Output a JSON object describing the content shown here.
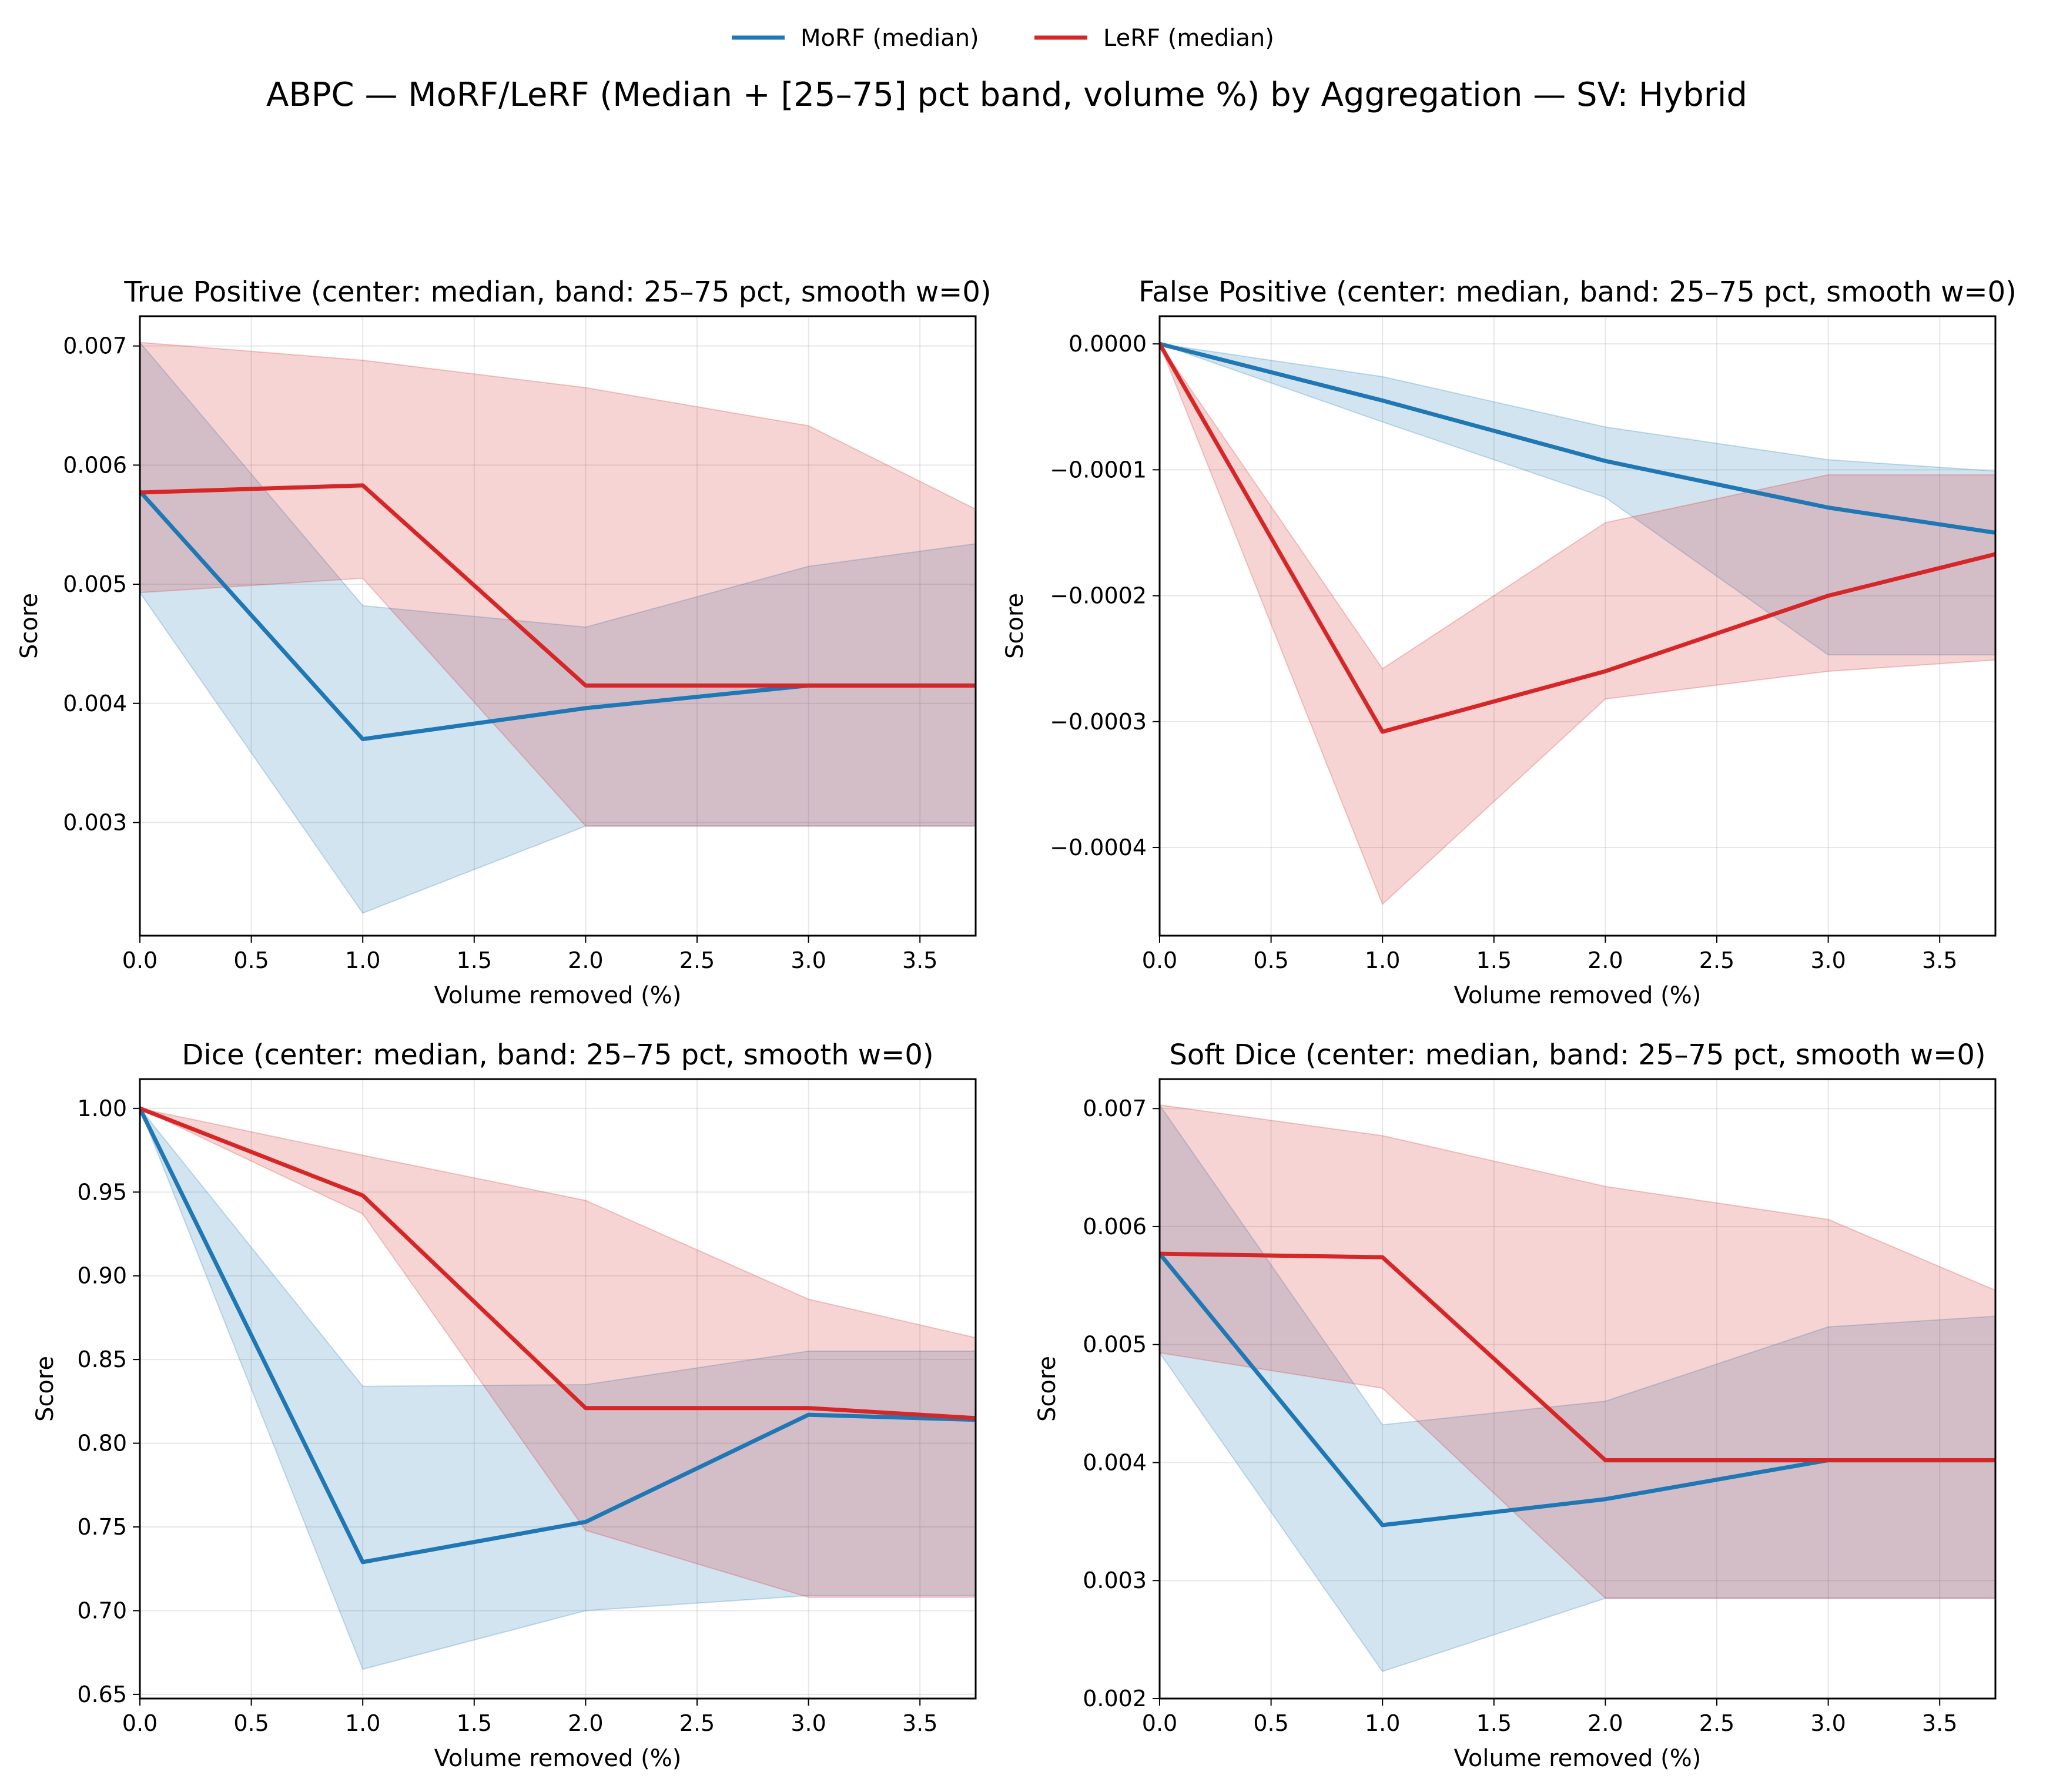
{
  "suptitle": "ABPC — MoRF/LeRF (Median + [25–75] pct band, volume %) by Aggregation — SV: Hybrid",
  "legend": [
    {
      "label": "MoRF (median)",
      "color": "#1f77b4"
    },
    {
      "label": "LeRF (median)",
      "color": "#d62728"
    }
  ],
  "colors": {
    "morf": "#1f77b4",
    "lerf": "#d62728",
    "grid": "#b0b0b0"
  },
  "chart_data": [
    {
      "type": "line",
      "title": "True Positive (center: median, band: 25–75 pct, smooth w=0)",
      "xlabel": "Volume removed (%)",
      "ylabel": "Score",
      "xlim": [
        0,
        3.75
      ],
      "ylim": [
        0.00205,
        0.00725
      ],
      "xticks": [
        "0.0",
        "0.5",
        "1.0",
        "1.5",
        "2.0",
        "2.5",
        "3.0",
        "3.5"
      ],
      "yticks": [
        "0.003",
        "0.004",
        "0.005",
        "0.006",
        "0.007"
      ],
      "grid": true,
      "x": [
        0,
        1,
        2,
        3,
        3.75
      ],
      "series": [
        {
          "name": "MoRF (median)",
          "values": [
            0.00578,
            0.0037,
            0.00396,
            0.00415,
            0.00415
          ],
          "lower": [
            0.00493,
            0.00224,
            0.00297,
            0.00297,
            0.00297
          ],
          "upper": [
            0.00703,
            0.00482,
            0.00464,
            0.00515,
            0.00534
          ]
        },
        {
          "name": "LeRF (median)",
          "values": [
            0.00577,
            0.00583,
            0.00415,
            0.00415,
            0.00415
          ],
          "lower": [
            0.00493,
            0.00505,
            0.00297,
            0.00297,
            0.00297
          ],
          "upper": [
            0.00703,
            0.00688,
            0.00665,
            0.00633,
            0.00563
          ]
        }
      ]
    },
    {
      "type": "line",
      "title": "False Positive (center: median, band: 25–75 pct, smooth w=0)",
      "xlabel": "Volume removed (%)",
      "ylabel": "Score",
      "xlim": [
        0,
        3.75
      ],
      "ylim": [
        -0.00047,
        2.2e-05
      ],
      "xticks": [
        "0.0",
        "0.5",
        "1.0",
        "1.5",
        "2.0",
        "2.5",
        "3.0",
        "3.5"
      ],
      "yticks": [
        "−0.0004",
        "−0.0003",
        "−0.0002",
        "−0.0001",
        "0.0000"
      ],
      "grid": true,
      "x": [
        0,
        1,
        2,
        3,
        3.75
      ],
      "series": [
        {
          "name": "MoRF (median)",
          "values": [
            0,
            -4.5e-05,
            -9.3e-05,
            -0.00013,
            -0.00015
          ],
          "lower": [
            0,
            -6.2e-05,
            -0.000122,
            -0.000247,
            -0.000247
          ],
          "upper": [
            0,
            -2.6e-05,
            -6.6e-05,
            -9.2e-05,
            -0.000101
          ]
        },
        {
          "name": "LeRF (median)",
          "values": [
            0,
            -0.000308,
            -0.00026,
            -0.0002,
            -0.000167
          ],
          "lower": [
            0,
            -0.000445,
            -0.000282,
            -0.00026,
            -0.000251
          ],
          "upper": [
            0,
            -0.000258,
            -0.000142,
            -0.000104,
            -0.000104
          ]
        }
      ]
    },
    {
      "type": "line",
      "title": "Dice (center: median, band: 25–75 pct, smooth w=0)",
      "xlabel": "Volume removed (%)",
      "ylabel": "Score",
      "xlim": [
        0,
        3.75
      ],
      "ylim": [
        0.6475,
        1.0175
      ],
      "xticks": [
        "0.0",
        "0.5",
        "1.0",
        "1.5",
        "2.0",
        "2.5",
        "3.0",
        "3.5"
      ],
      "yticks": [
        "0.65",
        "0.70",
        "0.75",
        "0.80",
        "0.85",
        "0.90",
        "0.95",
        "1.00"
      ],
      "grid": true,
      "x": [
        0,
        1,
        2,
        3,
        3.75
      ],
      "series": [
        {
          "name": "MoRF (median)",
          "values": [
            1.0,
            0.729,
            0.753,
            0.817,
            0.814
          ],
          "lower": [
            1.0,
            0.665,
            0.7,
            0.709,
            0.709
          ],
          "upper": [
            1.0,
            0.834,
            0.835,
            0.855,
            0.855
          ]
        },
        {
          "name": "LeRF (median)",
          "values": [
            1.0,
            0.948,
            0.821,
            0.821,
            0.815
          ],
          "lower": [
            1.0,
            0.937,
            0.748,
            0.708,
            0.708
          ],
          "upper": [
            1.0,
            0.972,
            0.945,
            0.886,
            0.863
          ]
        }
      ]
    },
    {
      "type": "line",
      "title": "Soft Dice (center: median, band: 25–75 pct, smooth w=0)",
      "xlabel": "Volume removed (%)",
      "ylabel": "Score",
      "xlim": [
        0,
        3.75
      ],
      "ylim": [
        0.002,
        0.00725
      ],
      "xticks": [
        "0.0",
        "0.5",
        "1.0",
        "1.5",
        "2.0",
        "2.5",
        "3.0",
        "3.5"
      ],
      "yticks": [
        "0.002",
        "0.003",
        "0.004",
        "0.005",
        "0.006",
        "0.007"
      ],
      "grid": true,
      "x": [
        0,
        1,
        2,
        3,
        3.75
      ],
      "series": [
        {
          "name": "MoRF (median)",
          "values": [
            0.00577,
            0.00347,
            0.00369,
            0.00402,
            0.00402
          ],
          "lower": [
            0.00493,
            0.00223,
            0.00285,
            0.00285,
            0.00285
          ],
          "upper": [
            0.00703,
            0.00432,
            0.00452,
            0.00515,
            0.00524
          ]
        },
        {
          "name": "LeRF (median)",
          "values": [
            0.00577,
            0.00574,
            0.00402,
            0.00402,
            0.00402
          ],
          "lower": [
            0.00493,
            0.00463,
            0.00285,
            0.00285,
            0.00285
          ],
          "upper": [
            0.00703,
            0.00677,
            0.00634,
            0.00606,
            0.00546
          ]
        }
      ]
    }
  ]
}
